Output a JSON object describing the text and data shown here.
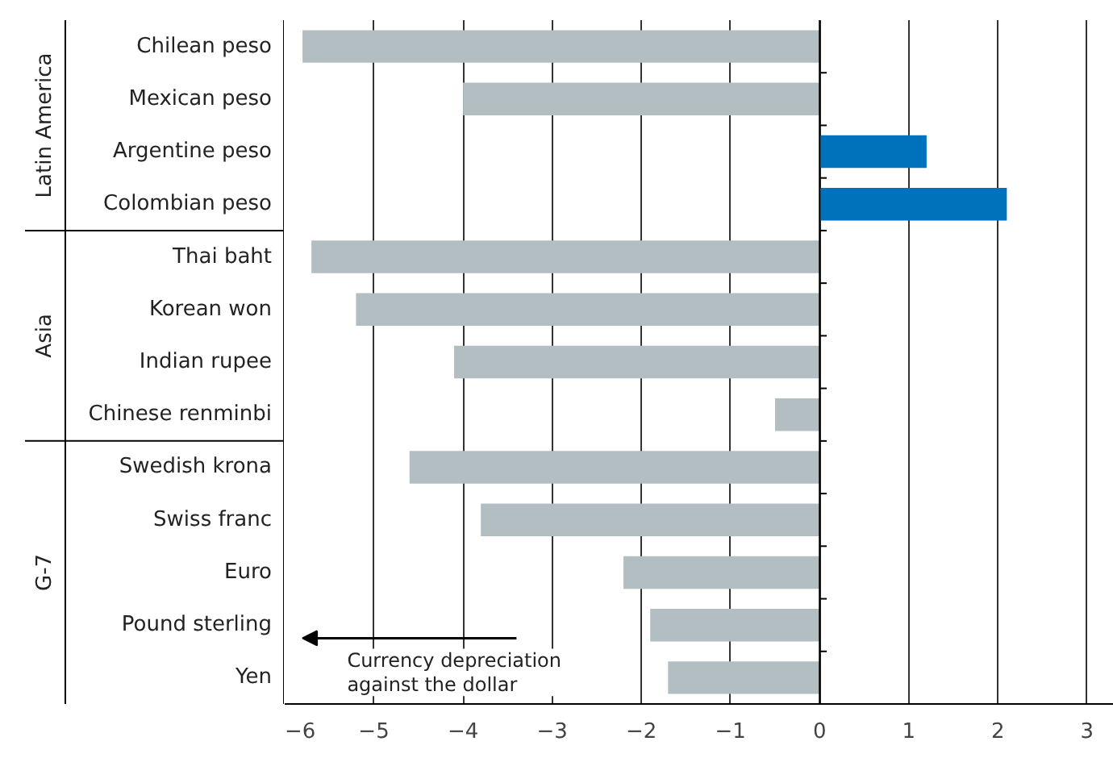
{
  "chart_data": {
    "type": "bar",
    "orientation": "horizontal",
    "categories": [
      "Chilean peso",
      "Mexican peso",
      "Argentine peso",
      "Colombian peso",
      "Thai baht",
      "Korean won",
      "Indian rupee",
      "Chinese renminbi",
      "Swedish krona",
      "Swiss franc",
      "Euro",
      "Pound sterling",
      "Yen"
    ],
    "values": [
      -5.8,
      -4.0,
      1.2,
      2.1,
      -5.7,
      -5.2,
      -4.1,
      -0.5,
      -4.6,
      -3.8,
      -2.2,
      -1.9,
      -1.7
    ],
    "colors": [
      "#b3bec2",
      "#b3bec2",
      "#0072bb",
      "#0072bb",
      "#b3bec2",
      "#b3bec2",
      "#b3bec2",
      "#b3bec2",
      "#b3bec2",
      "#b3bec2",
      "#b3bec2",
      "#b3bec2",
      "#b3bec2"
    ],
    "xlim": [
      -6,
      3.3
    ],
    "xticks": [
      -6,
      -5,
      -4,
      -3,
      -2,
      -1,
      0,
      1,
      2,
      3
    ],
    "grid": "x",
    "annotations": [
      "Latin America",
      "Asia",
      "G-7",
      "Currency depreciation\nagainst the dollar"
    ]
  }
}
